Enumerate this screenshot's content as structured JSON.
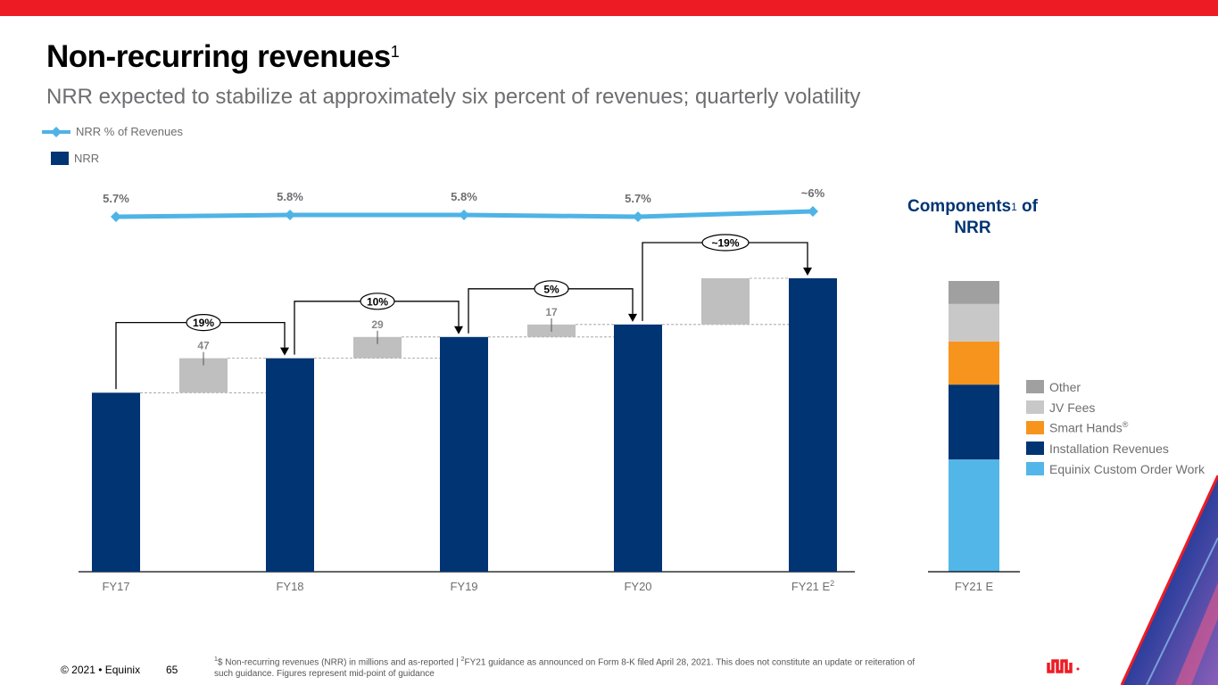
{
  "header": {
    "title": "Non-recurring revenues",
    "title_sup": "1",
    "subtitle": "NRR expected to stabilize at approximately six percent of revenues; quarterly volatility"
  },
  "legend": {
    "line_label": "NRR % of Revenues",
    "bar_label": "NRR"
  },
  "colors": {
    "brand_red": "#ed1c24",
    "nrr_bar": "#003473",
    "increment": "#bfbfbf",
    "line": "#4fb3e6",
    "text_gray": "#6d6e71"
  },
  "chart_data": [
    {
      "type": "bar",
      "subtype": "waterfall",
      "title": "NRR",
      "categories": [
        "FY17",
        "FY18",
        "FY19",
        "FY20",
        "FY21 E"
      ],
      "category_superscripts": [
        "",
        "",
        "",
        "",
        "2"
      ],
      "nrr_values_relative": [
        244,
        291,
        320,
        337,
        400
      ],
      "increments": [
        {
          "between": [
            "FY17",
            "FY18"
          ],
          "value": 47,
          "label": "47"
        },
        {
          "between": [
            "FY18",
            "FY19"
          ],
          "value": 29,
          "label": "29"
        },
        {
          "between": [
            "FY19",
            "FY20"
          ],
          "value": 17,
          "label": "17"
        },
        {
          "between": [
            "FY20",
            "FY21 E"
          ],
          "value": 63,
          "label": ""
        }
      ],
      "growth_callouts": [
        "19%",
        "10%",
        "5%",
        "~19%"
      ],
      "line_series": {
        "name": "NRR % of Revenues",
        "values": [
          5.7,
          5.8,
          5.8,
          5.7,
          6.0
        ],
        "labels": [
          "5.7%",
          "5.8%",
          "5.8%",
          "5.7%",
          "~6%"
        ]
      },
      "xlabel": "",
      "ylabel": "",
      "grid": false,
      "legend_position": "top-left"
    },
    {
      "type": "bar",
      "subtype": "stacked",
      "title": "Components of NRR",
      "title_sup": "1",
      "title_line1": "Components",
      "title_line1_suffix": " of",
      "title_line2": "NRR",
      "categories": [
        "FY21 E"
      ],
      "series": [
        {
          "name": "Equinix Custom Order Work",
          "value": 39,
          "color": "#52b7e8"
        },
        {
          "name": "Installation Revenues",
          "value": 26,
          "color": "#003473"
        },
        {
          "name": "Smart Hands",
          "name_sup": "®",
          "value": 15,
          "color": "#f7941d"
        },
        {
          "name": "JV Fees",
          "value": 13,
          "color": "#c8c8c8"
        },
        {
          "name": "Other",
          "value": 8,
          "color": "#a0a0a0"
        }
      ],
      "legend_order": [
        "Other",
        "JV Fees",
        "Smart Hands",
        "Installation Revenues",
        "Equinix Custom Order Work"
      ],
      "legend_position": "right"
    }
  ],
  "footer": {
    "copyright": "© 2021 • Equinix",
    "page": "65",
    "footnote_1_sup": "1",
    "footnote_1": "$ Non-recurring revenues (NRR) in millions and as-reported | ",
    "footnote_2_sup": "2",
    "footnote_2": "FY21 guidance as announced on Form 8-K filed April 28, 2021. This does not constitute an update or reiteration of such guidance. Figures represent mid-point of guidance"
  }
}
